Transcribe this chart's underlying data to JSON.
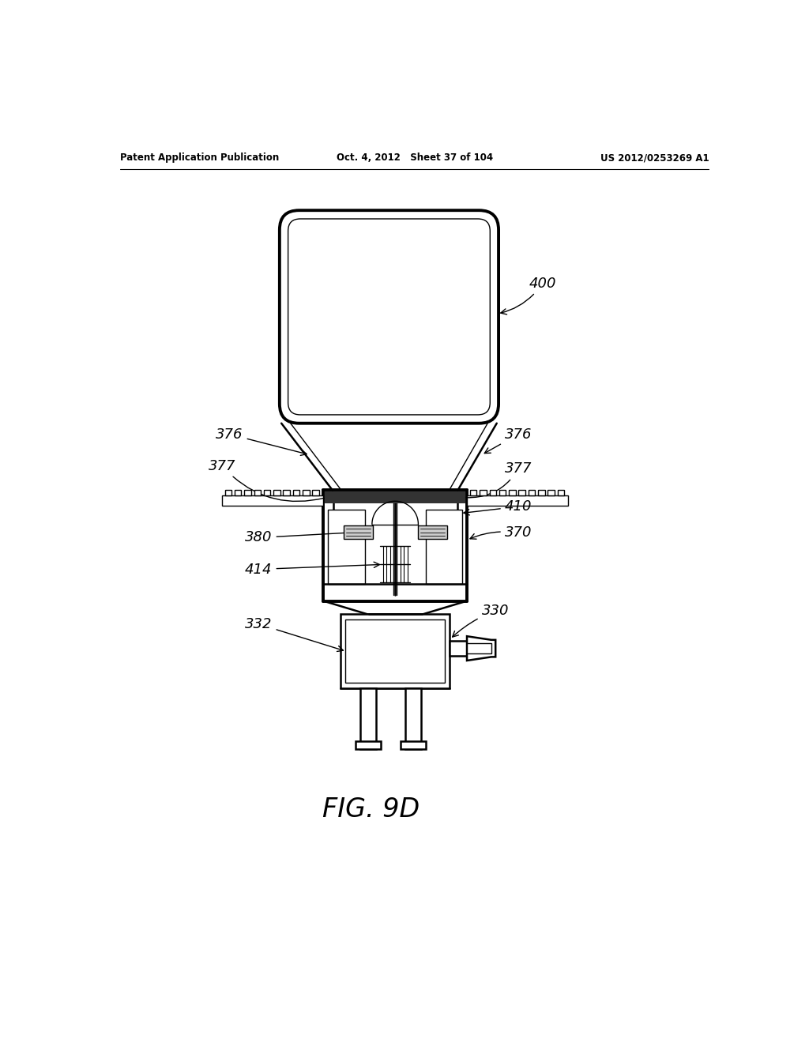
{
  "bg_color": "#ffffff",
  "line_color": "#000000",
  "header_left": "Patent Application Publication",
  "header_mid": "Oct. 4, 2012   Sheet 37 of 104",
  "header_right": "US 2012/0253269 A1",
  "figure_label": "FIG. 9D"
}
